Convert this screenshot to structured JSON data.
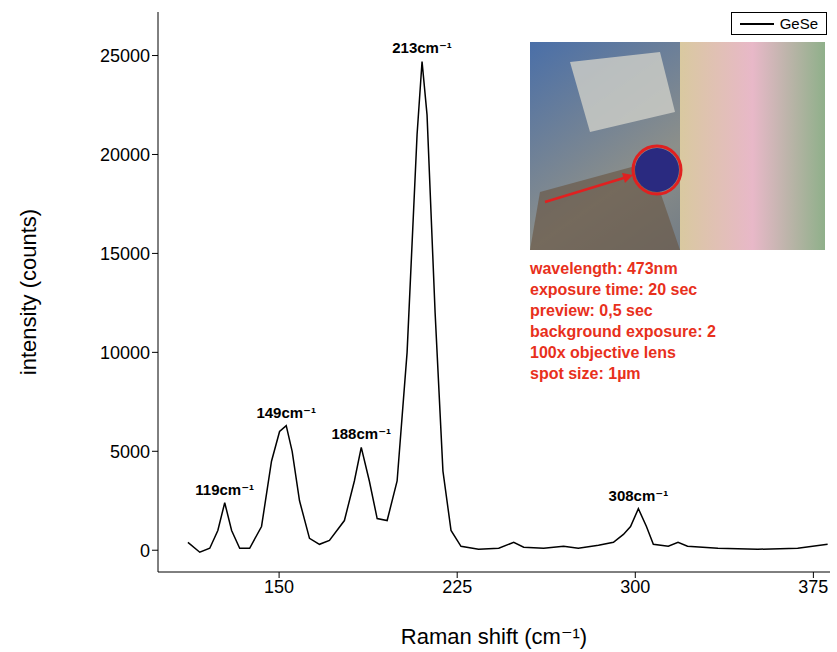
{
  "chart_data": {
    "type": "line",
    "x_label": "Raman shift (cm⁻¹)",
    "y_label": "intensity (counts)",
    "x": [
      111.6,
      116.6,
      120.8,
      124.2,
      127.1,
      130,
      133.4,
      137.6,
      142.6,
      146.8,
      150.2,
      153,
      155.5,
      158.6,
      162.8,
      167,
      171.2,
      177.5,
      181.7,
      184.6,
      188,
      191.3,
      195.5,
      199.7,
      203.9,
      208.1,
      210.2,
      212.3,
      215.7,
      219,
      222.4,
      226.6,
      234,
      242.5,
      248.8,
      253,
      261.4,
      269.8,
      276,
      284.5,
      290.8,
      295,
      298,
      301.3,
      304.7,
      307.6,
      313.9,
      318,
      322,
      334.8,
      351.6,
      368.4,
      381
    ],
    "series": [
      {
        "name": "GeSe",
        "color": "#000000",
        "values": [
          400,
          -100,
          100,
          1000,
          2400,
          1000,
          100,
          100,
          1200,
          4500,
          6000,
          6300,
          5000,
          2500,
          600,
          300,
          500,
          1500,
          3500,
          5200,
          3500,
          1600,
          1500,
          3500,
          10000,
          21000,
          24700,
          22000,
          12000,
          4000,
          1000,
          200,
          50,
          100,
          400,
          150,
          100,
          200,
          100,
          250,
          400,
          800,
          1200,
          2100,
          1200,
          300,
          200,
          400,
          200,
          100,
          50,
          100,
          300
        ]
      }
    ],
    "xlim": [
      99,
      382
    ],
    "xticks": [
      150,
      225,
      300,
      375
    ],
    "ylim": [
      -1100,
      27200
    ],
    "yticks": [
      0,
      5000,
      10000,
      15000,
      20000,
      25000
    ],
    "legend": "top right",
    "annotations": [
      {
        "text": "119cm⁻¹",
        "x": 127.1,
        "y": 2400
      },
      {
        "text": "149cm⁻¹",
        "x": 153,
        "y": 6300
      },
      {
        "text": "188cm⁻¹",
        "x": 184.6,
        "y": 5200
      },
      {
        "text": "213cm⁻¹",
        "x": 210.2,
        "y": 24700
      },
      {
        "text": "308cm⁻¹",
        "x": 301.3,
        "y": 2100
      }
    ],
    "inset_text": [
      "wavelength: 473nm",
      "exposure time: 20 sec",
      "preview: 0,5 sec",
      "background exposure: 2",
      "100x objective lens",
      "spot size: 1µm"
    ]
  }
}
